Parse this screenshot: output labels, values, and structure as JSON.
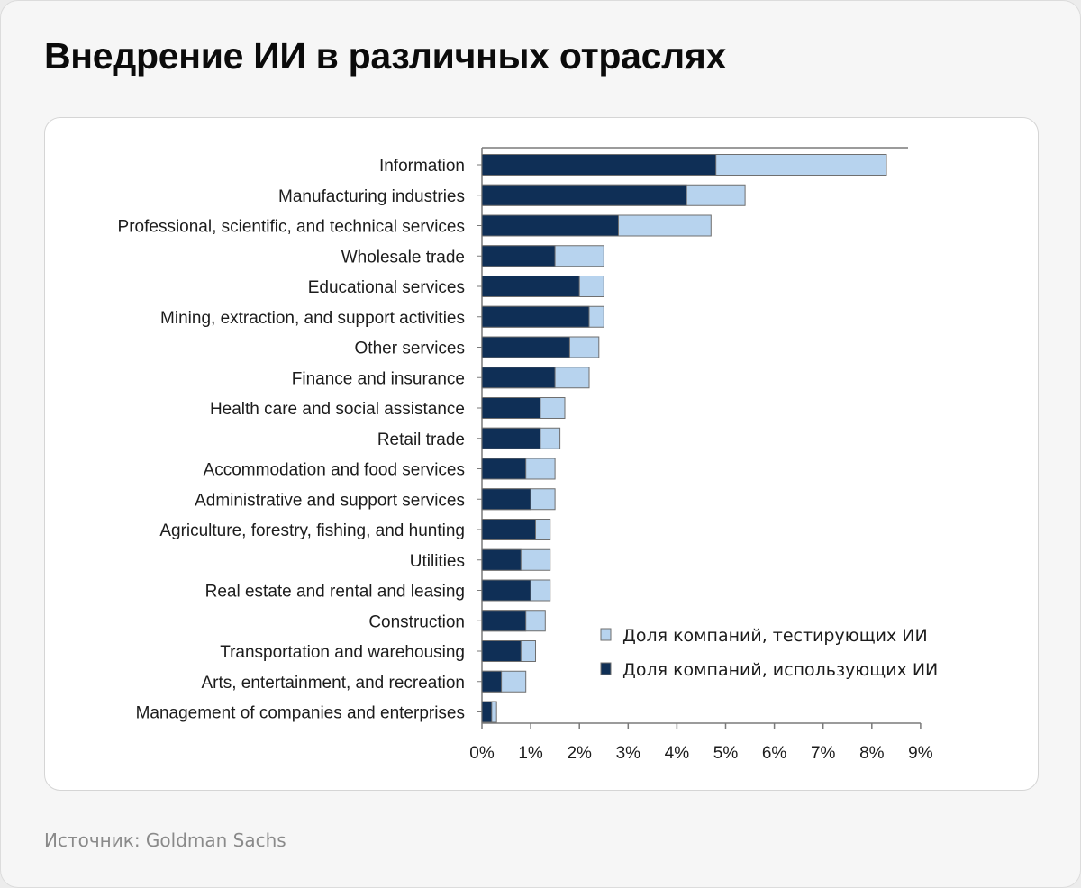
{
  "header": {
    "title": "Внедрение ИИ в различных отраслях"
  },
  "footer": {
    "source": "Источник: Goldman Sachs"
  },
  "colors": {
    "using": "#0f2f56",
    "testing": "#b7d3ee",
    "stroke": "#6f6f6f",
    "axis": "#7a7a7a"
  },
  "chart_data": {
    "type": "bar",
    "orientation": "horizontal",
    "stacked": true,
    "categories": [
      "Information",
      "Manufacturing industries",
      "Professional, scientific, and technical services",
      "Wholesale trade",
      "Educational services",
      "Mining, extraction, and support activities",
      "Other services",
      "Finance and insurance",
      "Health care and social assistance",
      "Retail trade",
      "Accommodation and food services",
      "Administrative and support services",
      "Agriculture, forestry, fishing, and hunting",
      "Utilities",
      "Real estate and rental and leasing",
      "Construction",
      "Transportation and warehousing",
      "Arts, entertainment, and recreation",
      "Management of companies and enterprises"
    ],
    "series": [
      {
        "name": "Доля компаний, использующих ИИ",
        "values": [
          4.8,
          4.2,
          2.8,
          1.5,
          2.0,
          2.2,
          1.8,
          1.5,
          1.2,
          1.2,
          0.9,
          1.0,
          1.1,
          0.8,
          1.0,
          0.9,
          0.8,
          0.4,
          0.2
        ]
      },
      {
        "name": "Доля компаний, тестирующих ИИ",
        "values": [
          3.5,
          1.2,
          1.9,
          1.0,
          0.5,
          0.3,
          0.6,
          0.7,
          0.5,
          0.4,
          0.6,
          0.5,
          0.3,
          0.6,
          0.4,
          0.4,
          0.3,
          0.5,
          0.1
        ]
      }
    ],
    "xticks": [
      "0%",
      "1%",
      "2%",
      "3%",
      "4%",
      "5%",
      "6%",
      "7%",
      "8%",
      "9%"
    ],
    "xlim": [
      0,
      9
    ],
    "legend": {
      "placement": "bottom-right",
      "items": [
        {
          "label": "Доля компаний, тестирующих ИИ",
          "series": 1
        },
        {
          "label": "Доля компаний, использующих ИИ",
          "series": 0
        }
      ]
    }
  }
}
